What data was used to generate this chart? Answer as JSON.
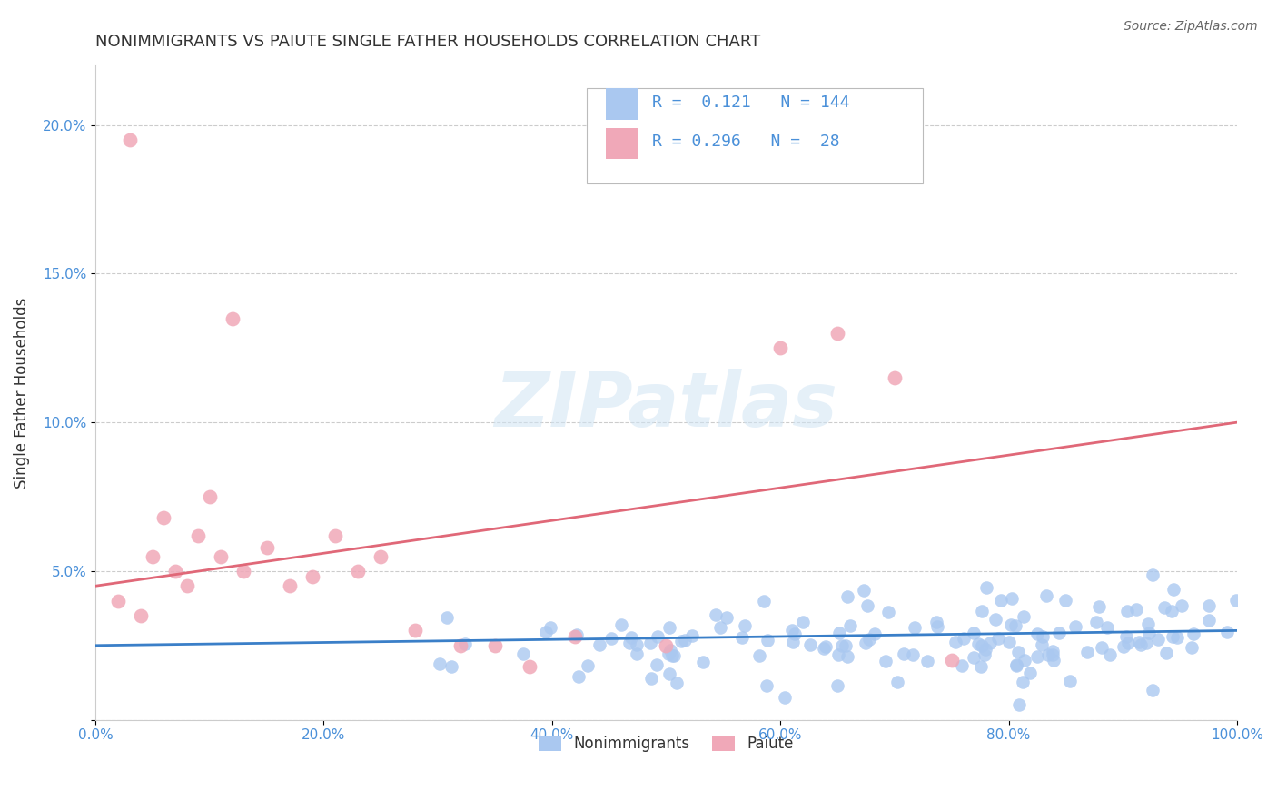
{
  "title": "NONIMMIGRANTS VS PAIUTE SINGLE FATHER HOUSEHOLDS CORRELATION CHART",
  "source": "Source: ZipAtlas.com",
  "xlabel": "",
  "ylabel": "Single Father Households",
  "xlim": [
    0,
    1.0
  ],
  "ylim": [
    0,
    0.22
  ],
  "xticks": [
    0.0,
    0.2,
    0.4,
    0.6,
    0.8,
    1.0
  ],
  "xtick_labels": [
    "0.0%",
    "20.0%",
    "40.0%",
    "60.0%",
    "80.0%",
    "100.0%"
  ],
  "yticks": [
    0.0,
    0.05,
    0.1,
    0.15,
    0.2
  ],
  "ytick_labels": [
    "",
    "5.0%",
    "10.0%",
    "15.0%",
    "20.0%"
  ],
  "blue_color": "#aac8f0",
  "pink_color": "#f0a8b8",
  "blue_line_color": "#3a7fc8",
  "pink_line_color": "#e06878",
  "legend_R1": "0.121",
  "legend_N1": "144",
  "legend_R2": "0.296",
  "legend_N2": "28",
  "legend_label1": "Nonimmigrants",
  "legend_label2": "Paiute",
  "watermark": "ZIPatlas",
  "blue_R": 0.121,
  "blue_N": 144,
  "pink_R": 0.296,
  "pink_N": 28,
  "title_color": "#333333",
  "axis_color": "#4a90d9",
  "grid_color": "#cccccc",
  "background_color": "#ffffff",
  "blue_line_y0": 0.025,
  "blue_line_y1": 0.03,
  "pink_line_y0": 0.045,
  "pink_line_y1": 0.1
}
